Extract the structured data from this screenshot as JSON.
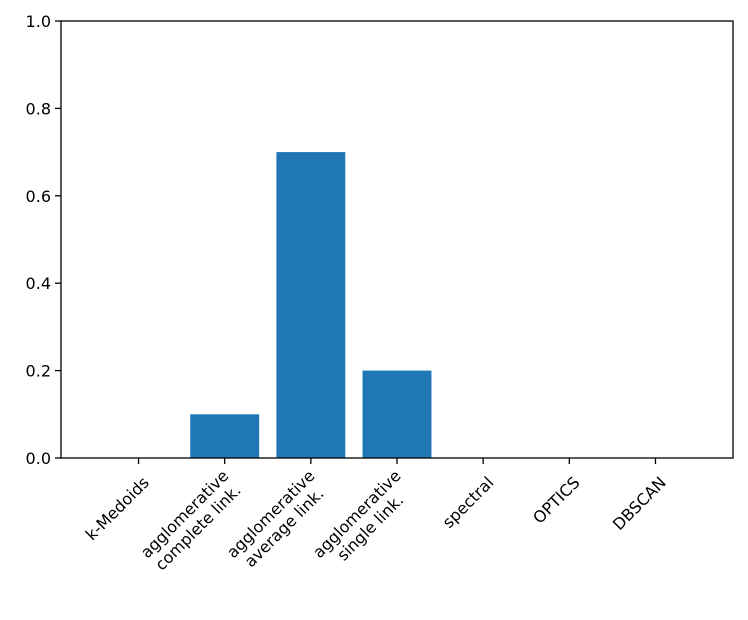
{
  "chart_data": {
    "type": "bar",
    "categories": [
      [
        "k-Medoids"
      ],
      [
        "agglomerative",
        "complete link."
      ],
      [
        "agglomerative",
        "average link."
      ],
      [
        "agglomerative",
        "single link."
      ],
      [
        "spectral"
      ],
      [
        "OPTICS"
      ],
      [
        "DBSCAN"
      ]
    ],
    "values": [
      0.0,
      0.1,
      0.7,
      0.2,
      0.0,
      0.0,
      0.0
    ],
    "title": "",
    "xlabel": "",
    "ylabel": "",
    "ylim": [
      0,
      1.0
    ],
    "yticks": [
      "0.0",
      "0.2",
      "0.4",
      "0.6",
      "0.8",
      "1.0"
    ],
    "bar_color": "#1f77b4",
    "grid": false
  }
}
